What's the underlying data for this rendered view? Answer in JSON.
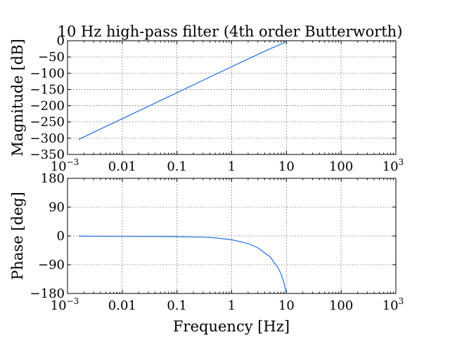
{
  "chart_data": [
    {
      "type": "line",
      "title": "10 Hz high-pass filter (4th order Butterworth)",
      "xlabel": "",
      "ylabel": "Magnitude [dB]",
      "xscale": "log",
      "xlim": [
        0.001,
        1000
      ],
      "ylim": [
        -350,
        0
      ],
      "grid": true,
      "xticks": [
        {
          "value": 0.001,
          "label": "10",
          "sup": "−3"
        },
        {
          "value": 0.01,
          "label": "0.01",
          "sup": ""
        },
        {
          "value": 0.1,
          "label": "0.1",
          "sup": ""
        },
        {
          "value": 1,
          "label": "1",
          "sup": ""
        },
        {
          "value": 10,
          "label": "10",
          "sup": ""
        },
        {
          "value": 100,
          "label": "100",
          "sup": ""
        },
        {
          "value": 1000,
          "label": "10",
          "sup": "3"
        }
      ],
      "yticks": [
        {
          "value": 0,
          "label": "0"
        },
        {
          "value": -50,
          "label": "−50"
        },
        {
          "value": -100,
          "label": "−100"
        },
        {
          "value": -150,
          "label": "−150"
        },
        {
          "value": -200,
          "label": "−200"
        },
        {
          "value": -250,
          "label": "−250"
        },
        {
          "value": -300,
          "label": "−300"
        },
        {
          "value": -350,
          "label": "−350"
        }
      ],
      "series": [
        {
          "color": "#1f6fe0",
          "x": [
            0.0016,
            0.005,
            0.01,
            0.05,
            0.1,
            0.5,
            1,
            2,
            5,
            8,
            10
          ],
          "y": [
            -304,
            -264,
            -240,
            -184,
            -160,
            -104,
            -80,
            -56,
            -25,
            -10.4,
            -3
          ]
        }
      ]
    },
    {
      "type": "line",
      "title": "",
      "xlabel": "Frequency [Hz]",
      "ylabel": "Phase [deg]",
      "xscale": "log",
      "xlim": [
        0.001,
        1000
      ],
      "ylim": [
        -180,
        180
      ],
      "grid": true,
      "xticks": [
        {
          "value": 0.001,
          "label": "10",
          "sup": "−3"
        },
        {
          "value": 0.01,
          "label": "0.01",
          "sup": ""
        },
        {
          "value": 0.1,
          "label": "0.1",
          "sup": ""
        },
        {
          "value": 1,
          "label": "1",
          "sup": ""
        },
        {
          "value": 10,
          "label": "10",
          "sup": ""
        },
        {
          "value": 100,
          "label": "100",
          "sup": ""
        },
        {
          "value": 1000,
          "label": "10",
          "sup": "3"
        }
      ],
      "yticks": [
        {
          "value": 180,
          "label": "180"
        },
        {
          "value": 90,
          "label": "90"
        },
        {
          "value": 0,
          "label": "0"
        },
        {
          "value": -90,
          "label": "−90"
        },
        {
          "value": -180,
          "label": "−180"
        }
      ],
      "series": [
        {
          "color": "#1f6fe0",
          "x": [
            0.0016,
            0.005,
            0.01,
            0.05,
            0.1,
            0.3,
            0.5,
            1,
            2,
            3,
            5,
            7,
            8,
            9,
            10
          ],
          "y": [
            -0.8,
            -1.2,
            -1.5,
            -2,
            -2.5,
            -4,
            -6,
            -12,
            -24,
            -37,
            -65,
            -99,
            -119,
            -146,
            -180
          ]
        }
      ]
    }
  ]
}
